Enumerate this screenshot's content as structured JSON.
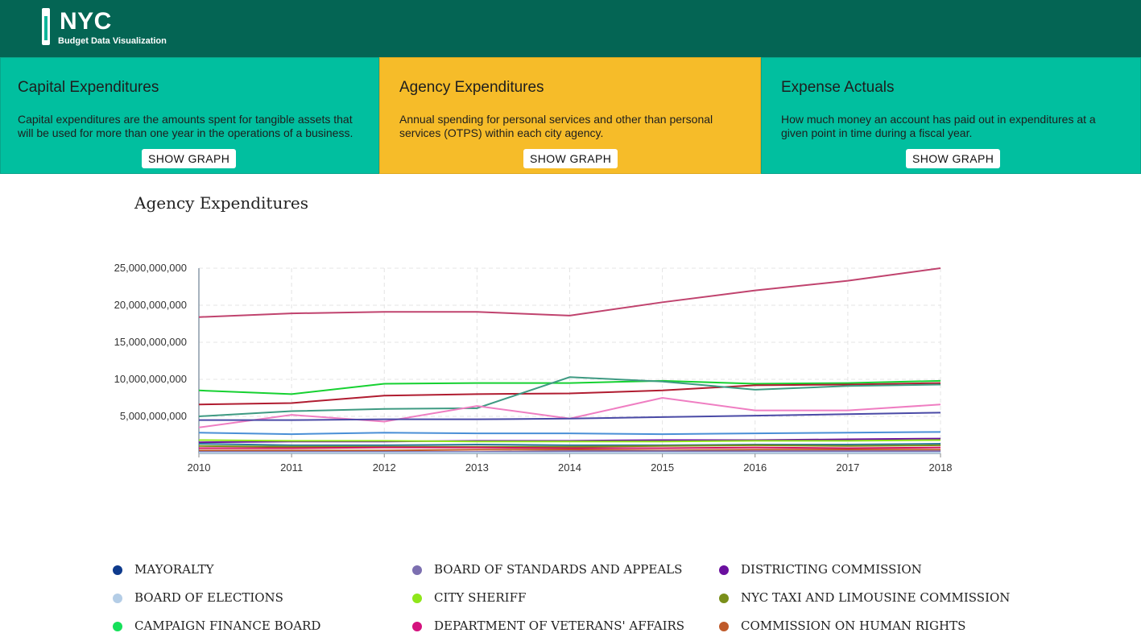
{
  "header": {
    "logo_title": "NYC",
    "logo_subtitle": "Budget Data Visualization",
    "background": "#046554"
  },
  "cards": [
    {
      "title": "Capital Expenditures",
      "description": "Capital expenditures are the amounts spent for tangible assets that will be used for more than one year in the operations of a business.",
      "button": "SHOW GRAPH",
      "active": false
    },
    {
      "title": "Agency Expenditures",
      "description": "Annual spending for personal services and other than personal services (OTPS) within each city agency.",
      "button": "SHOW GRAPH",
      "active": true
    },
    {
      "title": "Expense Actuals",
      "description": "How much money an account has paid out in expenditures at a given point in time during a fiscal year.",
      "button": "SHOW GRAPH",
      "active": false
    }
  ],
  "colors": {
    "card": "#01bf9f",
    "card_active": "#f6bc29"
  },
  "chart": {
    "title": "Agency Expenditures"
  },
  "chart_data": {
    "type": "line",
    "title": "Agency Expenditures",
    "x": [
      2010,
      2011,
      2012,
      2013,
      2014,
      2015,
      2016,
      2017,
      2018
    ],
    "xlim": [
      2010,
      2018
    ],
    "ylim": [
      0,
      25000000000
    ],
    "yticks": [
      "5,000,000,000",
      "10,000,000,000",
      "15,000,000,000",
      "20,000,000,000",
      "25,000,000,000"
    ],
    "grid": true,
    "series": [
      {
        "color": "#c0436e",
        "values": [
          18400000000,
          18900000000,
          19100000000,
          19100000000,
          18600000000,
          20400000000,
          22000000000,
          23300000000,
          25000000000
        ]
      },
      {
        "color": "#16d131",
        "values": [
          8500000000,
          8000000000,
          9400000000,
          9500000000,
          9500000000,
          9800000000,
          9400000000,
          9500000000,
          9800000000
        ]
      },
      {
        "color": "#b01c30",
        "values": [
          6600000000,
          6800000000,
          7800000000,
          8000000000,
          8100000000,
          8500000000,
          9200000000,
          9300000000,
          9500000000
        ]
      },
      {
        "color": "#3e9a82",
        "values": [
          5000000000,
          5700000000,
          6000000000,
          6100000000,
          10300000000,
          9700000000,
          8600000000,
          9100000000,
          9300000000
        ]
      },
      {
        "color": "#ef7ec2",
        "values": [
          3500000000,
          5200000000,
          4300000000,
          6400000000,
          4700000000,
          7500000000,
          5800000000,
          5800000000,
          6600000000
        ]
      },
      {
        "color": "#4a4aa6",
        "values": [
          4500000000,
          4500000000,
          4600000000,
          4600000000,
          4700000000,
          4900000000,
          5100000000,
          5300000000,
          5500000000
        ]
      },
      {
        "color": "#4a8fd6",
        "values": [
          2800000000,
          2600000000,
          2800000000,
          2700000000,
          2700000000,
          2600000000,
          2700000000,
          2800000000,
          2900000000
        ]
      },
      {
        "color": "#6a0f9e",
        "values": [
          1500000000,
          1600000000,
          1600000000,
          1700000000,
          1700000000,
          1800000000,
          1800000000,
          1900000000,
          2000000000
        ]
      },
      {
        "color": "#8fe61a",
        "values": [
          1800000000,
          1700000000,
          1700000000,
          1600000000,
          1600000000,
          1600000000,
          1700000000,
          1700000000,
          1800000000
        ]
      },
      {
        "color": "#2b7a9c",
        "values": [
          1300000000,
          1100000000,
          1100000000,
          1200000000,
          1100000000,
          1100000000,
          1200000000,
          1200000000,
          1300000000
        ]
      },
      {
        "color": "#7a8f1a",
        "values": [
          1000000000,
          900000000,
          900000000,
          900000000,
          900000000,
          1000000000,
          1100000000,
          1000000000,
          1100000000
        ]
      },
      {
        "color": "#d4125e",
        "values": [
          700000000,
          700000000,
          800000000,
          800000000,
          700000000,
          700000000,
          800000000,
          700000000,
          800000000
        ]
      },
      {
        "color": "#bf5a2a",
        "values": [
          400000000,
          400000000,
          400000000,
          500000000,
          500000000,
          400000000,
          500000000,
          500000000,
          500000000
        ]
      },
      {
        "color": "#7c6fb0",
        "values": [
          200000000,
          200000000,
          200000000,
          200000000,
          300000000,
          300000000,
          300000000,
          300000000,
          300000000
        ]
      },
      {
        "color": "#b4cde6",
        "values": [
          100000000,
          100000000,
          100000000,
          100000000,
          100000000,
          100000000,
          100000000,
          100000000,
          100000000
        ]
      }
    ]
  },
  "legend": [
    {
      "label": "MAYORALTY",
      "color": "#0e3a8c"
    },
    {
      "label": "BOARD OF STANDARDS AND APPEALS",
      "color": "#7c6fb0"
    },
    {
      "label": "DISTRICTING COMMISSION",
      "color": "#6a0f9e"
    },
    {
      "label": "BOARD OF ELECTIONS",
      "color": "#b4cde6"
    },
    {
      "label": "CITY SHERIFF",
      "color": "#8fe61a"
    },
    {
      "label": "NYC TAXI AND LIMOUSINE COMMISSION",
      "color": "#7a8f1a"
    },
    {
      "label": "CAMPAIGN FINANCE BOARD",
      "color": "#16e05a"
    },
    {
      "label": "DEPARTMENT OF VETERANS' AFFAIRS",
      "color": "#d4127e"
    },
    {
      "label": "COMMISSION ON HUMAN RIGHTS",
      "color": "#bf5a2a"
    }
  ]
}
